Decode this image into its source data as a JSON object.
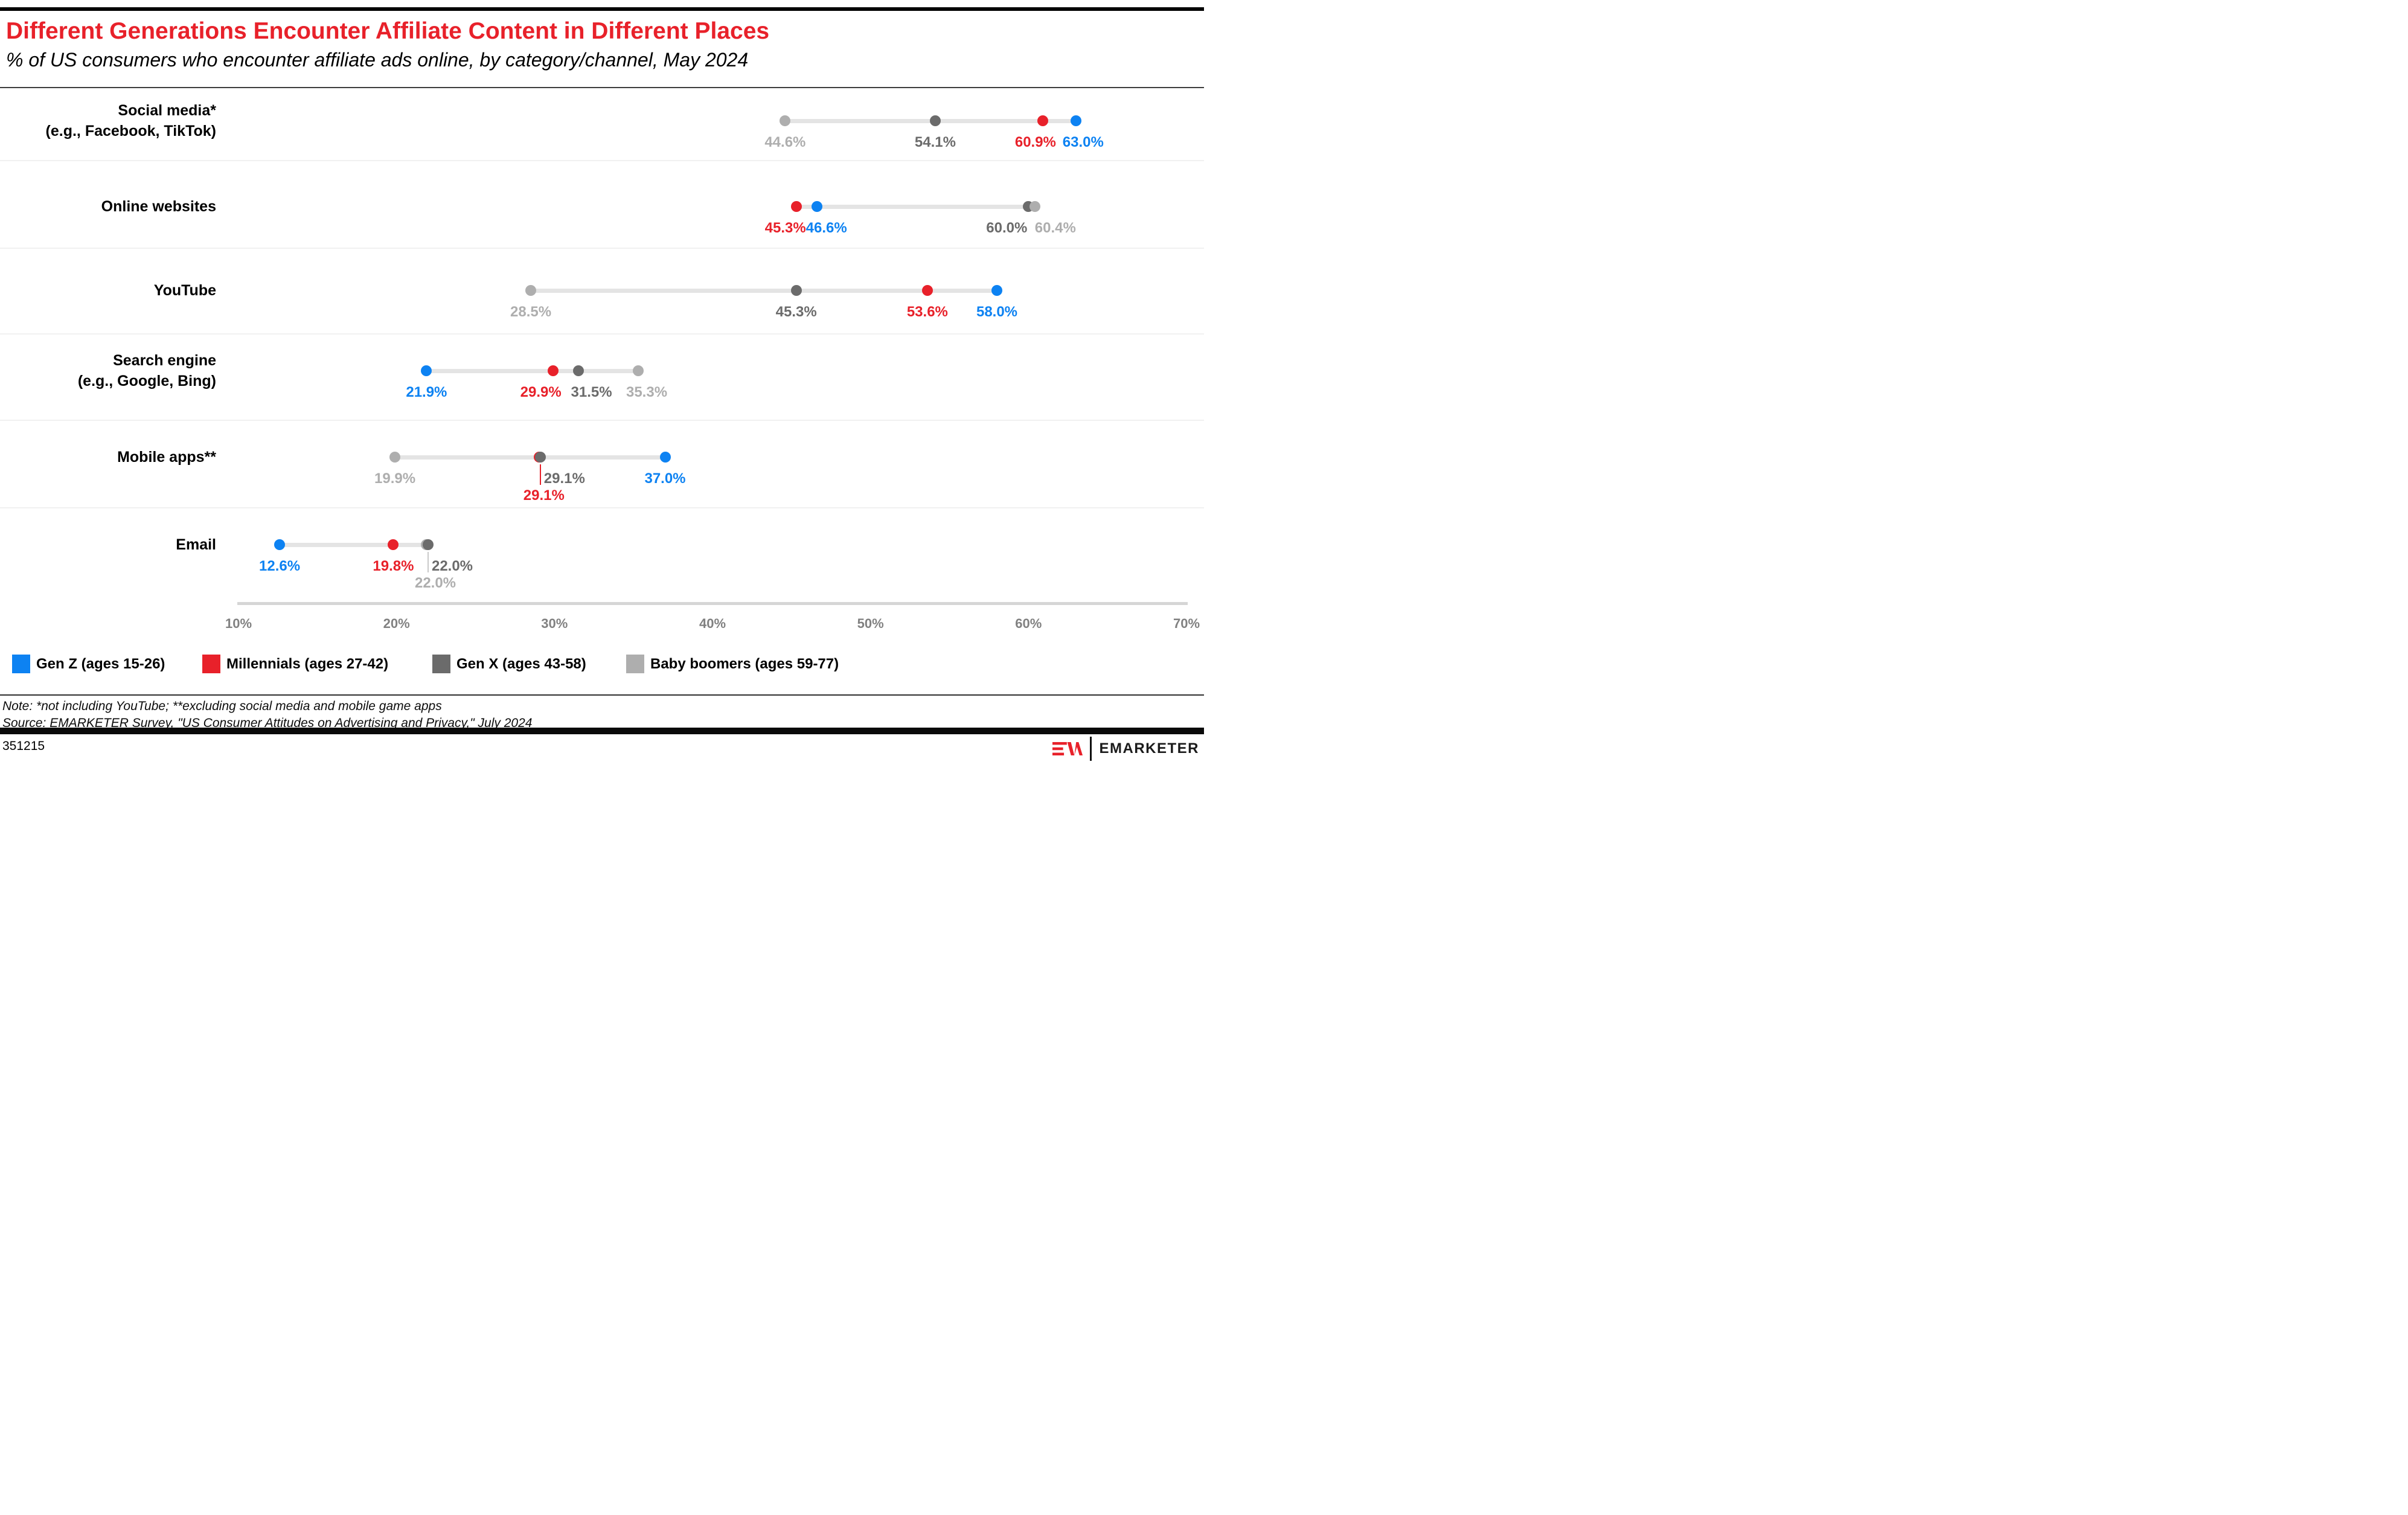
{
  "chart_data": {
    "type": "dot-plot",
    "title": "Different Generations Encounter Affiliate Content in Different Places",
    "subtitle": "% of US consumers who encounter affiliate ads online, by category/channel, May 2024",
    "x_axis": {
      "min": 10,
      "max": 70,
      "unit": "%",
      "grid": false,
      "ticks": [
        {
          "value": 10,
          "label": "10%"
        },
        {
          "value": 20,
          "label": "20%"
        },
        {
          "value": 30,
          "label": "30%"
        },
        {
          "value": 40,
          "label": "40%"
        },
        {
          "value": 50,
          "label": "50%"
        },
        {
          "value": 60,
          "label": "60%"
        },
        {
          "value": 70,
          "label": "70%"
        }
      ]
    },
    "series": [
      {
        "id": "genz",
        "label": "Gen Z (ages 15-26)",
        "color": "#0d82f2"
      },
      {
        "id": "millennials",
        "label": "Millennials (ages 27-42)",
        "color": "#e8212a"
      },
      {
        "id": "genx",
        "label": "Gen X (ages 43-58)",
        "color": "#6b6b6b"
      },
      {
        "id": "boomers",
        "label": "Baby boomers (ages 59-77)",
        "color": "#aeaeae"
      }
    ],
    "rows": [
      {
        "category_lines": [
          "Social media*",
          "(e.g., Facebook, TikTok)"
        ],
        "points": [
          {
            "series": "boomers",
            "value": 44.6,
            "label": "44.6%"
          },
          {
            "series": "genx",
            "value": 54.1,
            "label": "54.1%"
          },
          {
            "series": "millennials",
            "value": 60.9,
            "label": "60.9%",
            "label_dx": -12
          },
          {
            "series": "genz",
            "value": 63.0,
            "label": "63.0%",
            "label_dx": 12
          }
        ]
      },
      {
        "category_lines": [
          "Online websites"
        ],
        "points": [
          {
            "series": "millennials",
            "value": 45.3,
            "label": "45.3%",
            "label_dx": -18
          },
          {
            "series": "genz",
            "value": 46.6,
            "label": "46.6%",
            "label_dx": 16
          },
          {
            "series": "genx",
            "value": 60.0,
            "label": "60.0%",
            "label_dx": -36
          },
          {
            "series": "boomers",
            "value": 60.4,
            "label": "60.4%",
            "label_dx": 34
          }
        ]
      },
      {
        "category_lines": [
          "YouTube"
        ],
        "points": [
          {
            "series": "boomers",
            "value": 28.5,
            "label": "28.5%"
          },
          {
            "series": "genx",
            "value": 45.3,
            "label": "45.3%"
          },
          {
            "series": "millennials",
            "value": 53.6,
            "label": "53.6%"
          },
          {
            "series": "genz",
            "value": 58.0,
            "label": "58.0%"
          }
        ]
      },
      {
        "category_lines": [
          "Search engine",
          "(e.g., Google, Bing)"
        ],
        "points": [
          {
            "series": "genz",
            "value": 21.9,
            "label": "21.9%"
          },
          {
            "series": "millennials",
            "value": 29.9,
            "label": "29.9%",
            "label_dx": -20
          },
          {
            "series": "genx",
            "value": 31.5,
            "label": "31.5%",
            "label_dx": 22
          },
          {
            "series": "boomers",
            "value": 35.3,
            "label": "35.3%",
            "label_dx": 14
          }
        ]
      },
      {
        "category_lines": [
          "Mobile apps**"
        ],
        "points": [
          {
            "series": "boomers",
            "value": 19.9,
            "label": "19.9%"
          },
          {
            "series": "millennials",
            "value": 29.1,
            "label": "29.1%",
            "label_line": 2,
            "label_dx": 6,
            "leader": true,
            "dot_dx": -2
          },
          {
            "series": "genx",
            "value": 29.1,
            "label": "29.1%",
            "label_dx": 40
          },
          {
            "series": "genz",
            "value": 37.0,
            "label": "37.0%"
          }
        ]
      },
      {
        "category_lines": [
          "Email"
        ],
        "points": [
          {
            "series": "genz",
            "value": 12.6,
            "label": "12.6%"
          },
          {
            "series": "millennials",
            "value": 19.8,
            "label": "19.8%"
          },
          {
            "series": "boomers",
            "value": 22.0,
            "label": "22.0%",
            "label_line": 2,
            "label_dx": 12,
            "leader": true,
            "leader_color": "#c9c9c9",
            "dot_dx": -3
          },
          {
            "series": "genx",
            "value": 22.0,
            "label": "22.0%",
            "label_dx": 40
          }
        ]
      }
    ]
  },
  "footnotes": {
    "note": "Note: *not including YouTube; **excluding social media and mobile game apps",
    "source": "Source: EMARKETER Survey, \"US Consumer Attitudes on Advertising and Privacy,\" July 2024"
  },
  "footer": {
    "chart_id": "351215",
    "brand": "EMARKETER"
  },
  "colors": {
    "accent_red": "#e8212a",
    "connector_gray": "#e4e4e4",
    "axis_gray": "#d6d6d6"
  }
}
